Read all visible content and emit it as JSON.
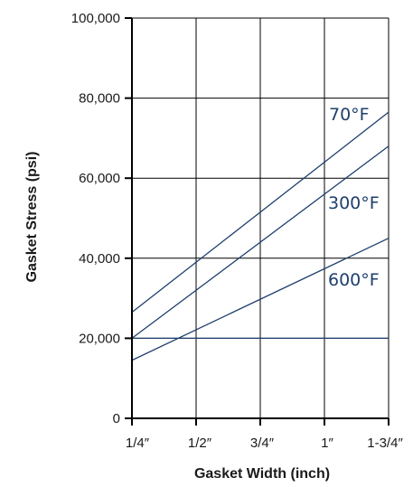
{
  "chart_data": {
    "type": "line",
    "xlabel": "Gasket Width (inch)",
    "ylabel": "Gasket Stress (psi)",
    "x_categories": [
      "1/4″",
      "1/2″",
      "3/4″",
      "1″",
      "1-3/4″"
    ],
    "ylim": [
      0,
      100000
    ],
    "y_ticks": [
      {
        "value": 0,
        "label": "0"
      },
      {
        "value": 20000,
        "label": "20,000"
      },
      {
        "value": 40000,
        "label": "40,000"
      },
      {
        "value": 60000,
        "label": "60,000"
      },
      {
        "value": 80000,
        "label": "80,000"
      },
      {
        "value": 100000,
        "label": "100,000"
      }
    ],
    "grid": true,
    "reference_lines": [
      {
        "y": 20000
      }
    ],
    "series": [
      {
        "name": "70°F",
        "start": {
          "x_index": 0,
          "y": 26500
        },
        "end": {
          "x_index": 4,
          "y": 76500
        }
      },
      {
        "name": "300°F",
        "start": {
          "x_index": 0,
          "y": 20000
        },
        "end": {
          "x_index": 4,
          "y": 68000
        }
      },
      {
        "name": "600°F",
        "start": {
          "x_index": 0,
          "y": 14500
        },
        "end": {
          "x_index": 4,
          "y": 45000
        }
      }
    ],
    "colors": {
      "series": "#1f3f6e",
      "axis": "#000000",
      "grid": "#000000"
    }
  }
}
